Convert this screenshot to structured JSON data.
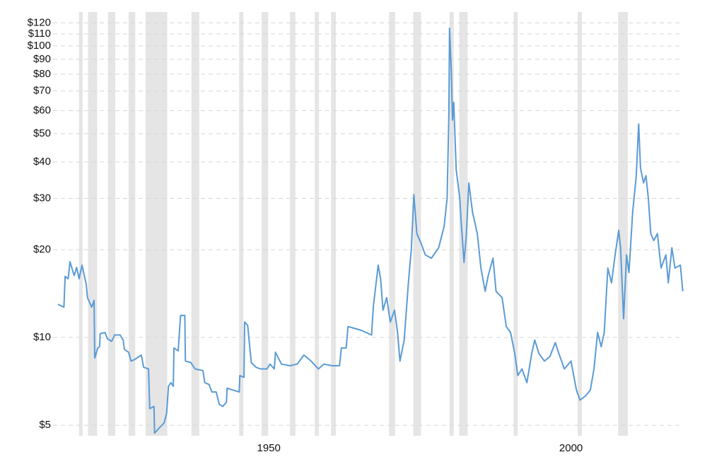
{
  "chart_data": {
    "type": "line",
    "log_scale_y": true,
    "grid": true,
    "xlim": [
      1915,
      2019
    ],
    "xticks": [
      1950,
      2000
    ],
    "ylim": [
      4.6,
      125
    ],
    "yticks": [
      {
        "value": 5,
        "label": "$5"
      },
      {
        "value": 10,
        "label": "$10"
      },
      {
        "value": 20,
        "label": "$20"
      },
      {
        "value": 30,
        "label": "$30"
      },
      {
        "value": 40,
        "label": "$40"
      },
      {
        "value": 50,
        "label": "$50"
      },
      {
        "value": 60,
        "label": "$60"
      },
      {
        "value": 70,
        "label": "$70"
      },
      {
        "value": 80,
        "label": "$80"
      },
      {
        "value": 90,
        "label": "$90"
      },
      {
        "value": 100,
        "label": "$100"
      },
      {
        "value": 110,
        "label": "$110"
      },
      {
        "value": 120,
        "label": "$120"
      }
    ],
    "shaded_color": "#e5e5e5",
    "shaded_ranges": [
      [
        1918.6,
        1919.2
      ],
      [
        1920.1,
        1921.6
      ],
      [
        1923.4,
        1924.6
      ],
      [
        1926.8,
        1927.9
      ],
      [
        1929.6,
        1933.2
      ],
      [
        1937.2,
        1938.5
      ],
      [
        1945.1,
        1945.8
      ],
      [
        1948.8,
        1949.9
      ],
      [
        1953.5,
        1954.4
      ],
      [
        1957.6,
        1958.3
      ],
      [
        1960.3,
        1961.1
      ],
      [
        1969.9,
        1970.9
      ],
      [
        1973.9,
        1975.2
      ],
      [
        1979.9,
        1980.6
      ],
      [
        1981.5,
        1982.9
      ],
      [
        1990.5,
        1991.2
      ],
      [
        2001.1,
        2001.8
      ],
      [
        2007.8,
        2009.4
      ]
    ],
    "series": [
      {
        "color": "#5b9bd5",
        "x": [
          1915.1,
          1916.1,
          1916.3,
          1916.8,
          1917.1,
          1917.8,
          1918.2,
          1918.6,
          1919.1,
          1919.8,
          1920.0,
          1920.7,
          1921.1,
          1921.2,
          1921.7,
          1922.0,
          1922.1,
          1922.9,
          1923.3,
          1924.0,
          1924.5,
          1925.4,
          1925.9,
          1926.1,
          1926.8,
          1927.2,
          1927.8,
          1928.9,
          1929.3,
          1930.1,
          1930.3,
          1931.0,
          1931.1,
          1931.9,
          1932.7,
          1933.1,
          1933.4,
          1933.8,
          1934.2,
          1934.3,
          1935.0,
          1935.4,
          1936.1,
          1936.2,
          1937.1,
          1937.8,
          1939.1,
          1939.4,
          1940.1,
          1940.6,
          1941.3,
          1941.8,
          1942.4,
          1943.0,
          1943.1,
          1944.1,
          1945.1,
          1945.2,
          1945.9,
          1946.0,
          1946.5,
          1947.1,
          1947.9,
          1948.6,
          1949.7,
          1950.2,
          1950.9,
          1951.1,
          1952.1,
          1953.5,
          1954.7,
          1955.8,
          1957.0,
          1958.2,
          1959.1,
          1960.5,
          1961.7,
          1962.0,
          1962.8,
          1963.1,
          1965.2,
          1967.0,
          1967.3,
          1968.1,
          1968.5,
          1968.9,
          1969.5,
          1970.1,
          1970.8,
          1971.3,
          1971.7,
          1972.4,
          1973.1,
          1973.6,
          1974.0,
          1974.5,
          1975.2,
          1975.9,
          1976.9,
          1978.1,
          1979.0,
          1979.5,
          1979.8,
          1979.9,
          1980.2,
          1980.4,
          1980.6,
          1981.0,
          1981.6,
          1981.8,
          1982.3,
          1982.7,
          1983.1,
          1983.7,
          1984.5,
          1985.1,
          1985.8,
          1986.3,
          1987.1,
          1987.6,
          1988.6,
          1989.3,
          1990.0,
          1990.7,
          1991.2,
          1991.9,
          1992.7,
          1993.5,
          1994.0,
          1994.7,
          1995.6,
          1996.5,
          1997.4,
          1998.0,
          1998.9,
          2000.0,
          2000.9,
          2001.5,
          2002.4,
          2003.2,
          2003.8,
          2004.4,
          2005.0,
          2005.5,
          2006.1,
          2006.7,
          2007.3,
          2007.9,
          2008.2,
          2008.7,
          2009.2,
          2009.6,
          2010.2,
          2010.8,
          2011.2,
          2011.5,
          2012.0,
          2012.4,
          2012.8,
          2013.2,
          2013.7,
          2014.3,
          2014.9,
          2015.7,
          2016.1,
          2016.7,
          2017.2,
          2018.1,
          2018.5
        ],
        "values": [
          13.0,
          12.7,
          16.2,
          15.9,
          18.2,
          16.3,
          17.4,
          15.9,
          17.7,
          15.2,
          13.7,
          12.7,
          13.4,
          8.5,
          9.2,
          9.3,
          10.3,
          10.4,
          9.9,
          9.7,
          10.2,
          10.2,
          9.8,
          9.1,
          8.9,
          8.3,
          8.4,
          8.7,
          7.9,
          7.8,
          5.7,
          5.8,
          4.7,
          4.9,
          5.1,
          5.5,
          6.8,
          7.0,
          6.8,
          9.2,
          9.0,
          11.9,
          11.9,
          8.3,
          8.2,
          7.8,
          7.7,
          7.0,
          6.9,
          6.5,
          6.5,
          5.9,
          5.8,
          6.0,
          6.7,
          6.6,
          6.5,
          7.4,
          7.3,
          11.3,
          11.0,
          8.2,
          7.9,
          7.8,
          7.8,
          8.1,
          7.8,
          8.9,
          8.1,
          8.0,
          8.1,
          8.7,
          8.3,
          7.8,
          8.1,
          8.0,
          8.0,
          9.2,
          9.2,
          10.9,
          10.6,
          10.2,
          12.8,
          17.7,
          15.9,
          12.4,
          13.7,
          11.3,
          12.4,
          10.4,
          8.3,
          9.8,
          15.4,
          20.3,
          30.9,
          22.7,
          21.0,
          19.2,
          18.7,
          20.3,
          24.0,
          30.0,
          58.9,
          115,
          82.3,
          55.7,
          64,
          37.7,
          30.0,
          25.5,
          18.1,
          22.7,
          33.9,
          26.9,
          22.7,
          17.3,
          14.4,
          16.3,
          18.7,
          14.4,
          13.7,
          10.9,
          10.4,
          8.8,
          7.4,
          7.8,
          7.0,
          8.8,
          9.8,
          8.8,
          8.3,
          8.6,
          9.6,
          8.8,
          7.8,
          8.3,
          6.6,
          6.1,
          6.3,
          6.6,
          7.8,
          10.4,
          9.3,
          10.4,
          17.3,
          15.4,
          19.2,
          23.3,
          20.3,
          11.6,
          19.2,
          16.7,
          26.9,
          35.9,
          54.0,
          38.2,
          33.9,
          35.9,
          30.0,
          22.7,
          21.5,
          22.7,
          17.3,
          19.2,
          15.4,
          20.3,
          17.3,
          17.7,
          14.4
        ]
      }
    ]
  }
}
